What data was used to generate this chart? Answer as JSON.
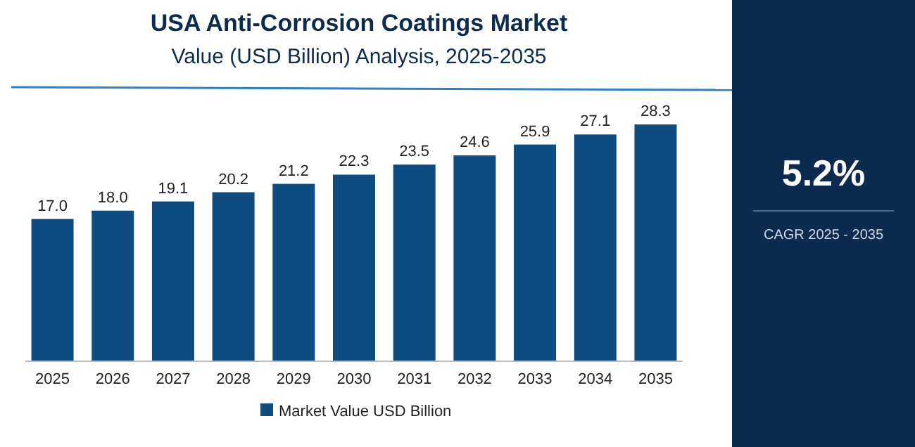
{
  "chart_data": {
    "type": "bar",
    "title": "USA Anti-Corrosion Coatings Market",
    "subtitle": "Value (USD Billion) Analysis, 2025-2035",
    "categories": [
      "2025",
      "2026",
      "2027",
      "2028",
      "2029",
      "2030",
      "2031",
      "2032",
      "2033",
      "2034",
      "2035"
    ],
    "series": [
      {
        "name": "Market Value USD Billion",
        "color": "#0f4c81",
        "values": [
          17.0,
          18.0,
          19.1,
          20.2,
          21.2,
          22.3,
          23.5,
          24.6,
          25.9,
          27.1,
          28.3
        ],
        "value_labels": [
          "17.0",
          "18.0",
          "19.1",
          "20.2",
          "21.2",
          "22.3",
          "23.5",
          "24.6",
          "25.9",
          "27.1",
          "28.3"
        ]
      }
    ],
    "legend": "bottom",
    "annotations": [
      "5.2%",
      "CAGR 2025 - 2035"
    ]
  }
}
